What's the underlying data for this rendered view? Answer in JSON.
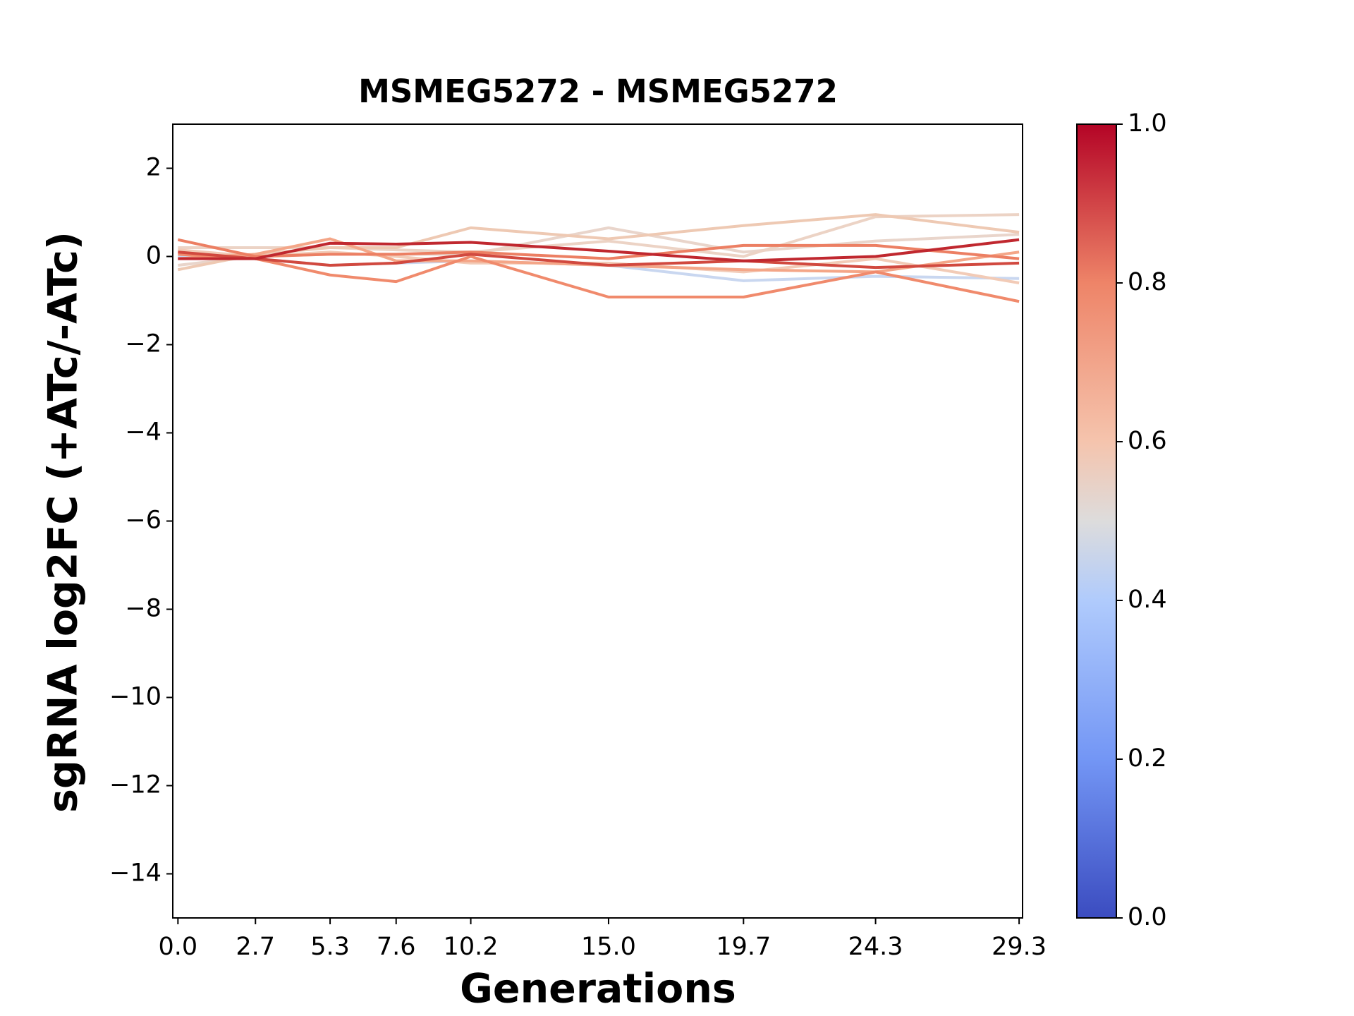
{
  "chart_data": {
    "type": "line",
    "title": "MSMEG5272 - MSMEG5272",
    "x_label": "Generations",
    "y_label": "sgRNA log2FC (+ATc/-ATc)",
    "x": [
      0,
      2.7,
      5.3,
      7.6,
      10.2,
      15,
      19.7,
      24.3,
      29.3
    ],
    "xlim": [
      -0.18,
      29.42
    ],
    "xticks": [
      {
        "value": 0,
        "label": "0.0"
      },
      2.7,
      5.3,
      7.6,
      10.2,
      {
        "value": 15,
        "label": "15.0"
      },
      19.7,
      24.3,
      29.3
    ],
    "ylim": [
      -15,
      3
    ],
    "yticks": [
      {
        "value": -14,
        "label": "−14"
      },
      {
        "value": -12,
        "label": "−12"
      },
      {
        "value": -10,
        "label": "−10"
      },
      {
        "value": -8,
        "label": "−8"
      },
      {
        "value": -6,
        "label": "−6"
      },
      {
        "value": -4,
        "label": "−4"
      },
      {
        "value": -2,
        "label": "−2"
      },
      0,
      2
    ],
    "grid": false,
    "series": [
      {
        "color": "#c9d7f0",
        "values": [
          0.0,
          -0.05,
          -0.2,
          -0.15,
          -0.1,
          -0.2,
          -0.55,
          -0.45,
          -0.5
        ]
      },
      {
        "color": "#e9d5cb",
        "values": [
          -0.2,
          0.0,
          0.05,
          0.05,
          0.05,
          0.65,
          0.1,
          0.35,
          0.5
        ]
      },
      {
        "color": "#ecd3c5",
        "values": [
          0.2,
          0.2,
          0.2,
          0.15,
          0.1,
          0.35,
          0.0,
          0.9,
          0.95
        ]
      },
      {
        "color": "#eec9b3",
        "values": [
          -0.3,
          0.05,
          0.2,
          0.2,
          0.65,
          0.4,
          0.7,
          0.95,
          0.55
        ]
      },
      {
        "color": "#f2cbb7",
        "values": [
          0.15,
          0.0,
          0.1,
          0.0,
          -0.15,
          -0.15,
          -0.35,
          -0.05,
          -0.6
        ]
      },
      {
        "color": "#f4a688",
        "values": [
          -0.05,
          0.05,
          0.4,
          -0.1,
          -0.1,
          -0.2,
          -0.3,
          -0.35,
          0.1
        ]
      },
      {
        "color": "#ec7f63",
        "values": [
          0.38,
          0.0,
          0.05,
          0.05,
          0.1,
          -0.05,
          0.25,
          0.25,
          -0.05
        ]
      },
      {
        "color": "#f08a6c",
        "values": [
          0.05,
          -0.05,
          -0.42,
          -0.57,
          0.0,
          -0.92,
          -0.92,
          -0.35,
          -1.02
        ]
      },
      {
        "color": "#d1493f",
        "values": [
          0.1,
          -0.05,
          -0.2,
          -0.15,
          0.05,
          -0.2,
          -0.1,
          -0.25,
          -0.15
        ]
      },
      {
        "color": "#c0282f",
        "values": [
          -0.05,
          -0.05,
          0.3,
          0.28,
          0.32,
          0.12,
          -0.1,
          0.0,
          0.38
        ]
      }
    ],
    "colorbar": {
      "clim": [
        0,
        1
      ],
      "ticks": [
        {
          "value": 0,
          "label": "0.0"
        },
        0.2,
        0.4,
        0.6,
        0.8,
        {
          "value": 1,
          "label": "1.0"
        }
      ]
    }
  }
}
